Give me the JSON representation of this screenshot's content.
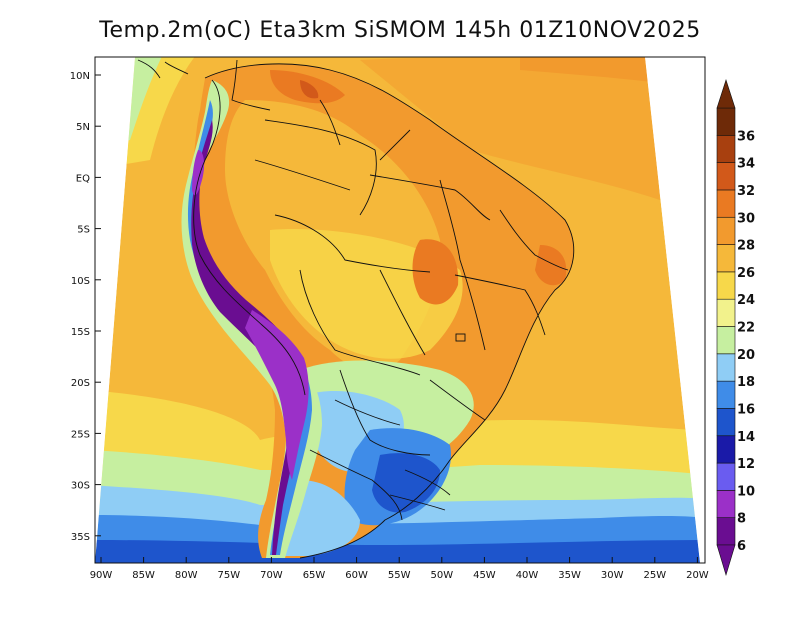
{
  "title": "Temp.2m(oC) Eta3km SiSMOM 145h 01Z10NOV2025",
  "lat_ticks": [
    "10N",
    "5N",
    "EQ",
    "5S",
    "10S",
    "15S",
    "20S",
    "25S",
    "30S",
    "35S"
  ],
  "lon_ticks": [
    "90W",
    "85W",
    "80W",
    "75W",
    "70W",
    "65W",
    "60W",
    "55W",
    "50W",
    "45W",
    "40W",
    "35W",
    "30W",
    "25W",
    "20W"
  ],
  "colorbar": {
    "labels": [
      "6",
      "8",
      "10",
      "12",
      "14",
      "16",
      "18",
      "20",
      "22",
      "24",
      "26",
      "28",
      "30",
      "32",
      "34",
      "36"
    ],
    "colors": [
      "#6a0d91",
      "#9b30c8",
      "#6a5cf0",
      "#1a1aa8",
      "#1e55cc",
      "#3f8ce8",
      "#8fcdf5",
      "#c6efa0",
      "#f2f28c",
      "#f7d84a",
      "#f5b83a",
      "#f29a2e",
      "#ea7a22",
      "#d2591a",
      "#a8400f",
      "#6e2a08"
    ]
  },
  "chart_data": {
    "type": "heatmap",
    "variable": "Temp.2m(oC)",
    "model": "Eta3km SiSMOM",
    "forecast_hour": "145h",
    "valid_time": "01Z10NOV2025",
    "lon_range": [
      -91,
      -20
    ],
    "lat_range": [
      -38,
      11
    ],
    "value_range": [
      6,
      36
    ],
    "units": "oC"
  }
}
